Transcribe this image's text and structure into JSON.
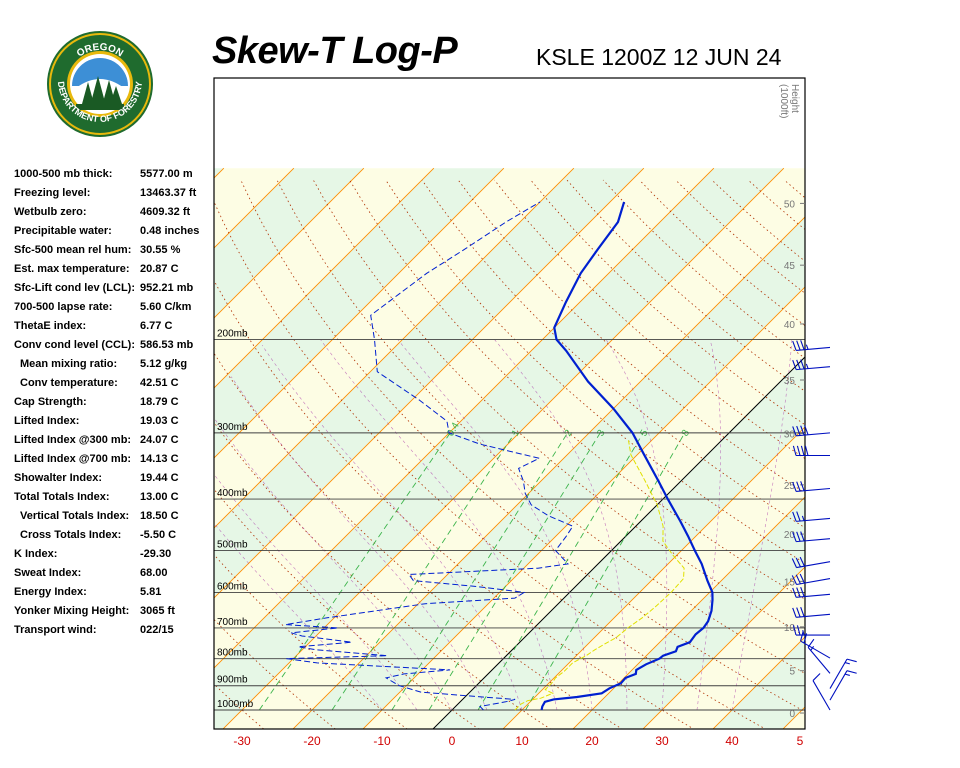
{
  "header": {
    "title": "Skew-T Log-P",
    "station": "KSLE 1200Z 12 JUN 24"
  },
  "logo": {
    "top_text": "OREGON",
    "ring_text": "DEPARTMENT OF FORESTRY",
    "colors": {
      "ring": "#1f6b2e",
      "gold": "#e8b90d",
      "sky": "#3d8fd6",
      "trees": "#1a5a24"
    }
  },
  "indices": [
    {
      "label": "1000-500 mb thick:",
      "value": "5577.00 m"
    },
    {
      "label": "Freezing level:",
      "value": "13463.37 ft"
    },
    {
      "label": "Wetbulb zero:",
      "value": "4609.32 ft"
    },
    {
      "label": "Precipitable water:",
      "value": "0.48 inches"
    },
    {
      "label": "Sfc-500 mean rel hum:",
      "value": "30.55 %"
    },
    {
      "label": "Est. max temperature:",
      "value": "20.87 C"
    },
    {
      "label": "Sfc-Lift cond lev (LCL):",
      "value": "952.21 mb"
    },
    {
      "label": "700-500 lapse rate:",
      "value": "5.60 C/km"
    },
    {
      "label": "ThetaE index:",
      "value": "6.77 C"
    },
    {
      "label": "Conv cond level (CCL):",
      "value": "586.53 mb"
    },
    {
      "label": "Mean mixing ratio:",
      "value": "5.12 g/kg",
      "sub": true
    },
    {
      "label": "Conv temperature:",
      "value": "42.51 C",
      "sub": true
    },
    {
      "label": "Cap Strength:",
      "value": "18.79 C"
    },
    {
      "label": "Lifted Index:",
      "value": "19.03 C"
    },
    {
      "label": "Lifted Index @300 mb:",
      "value": "24.07 C"
    },
    {
      "label": "Lifted Index @700 mb:",
      "value": "14.13 C"
    },
    {
      "label": "Showalter Index:",
      "value": "19.44 C"
    },
    {
      "label": "Total Totals Index:",
      "value": "13.00 C"
    },
    {
      "label": "Vertical Totals Index:",
      "value": "18.50 C",
      "sub": true
    },
    {
      "label": "Cross Totals Index:",
      "value": "-5.50 C",
      "sub": true
    },
    {
      "label": "K Index:",
      "value": "-29.30"
    },
    {
      "label": "Sweat Index:",
      "value": "68.00"
    },
    {
      "label": "Energy Index:",
      "value": "5.81"
    },
    {
      "label": "Yonker Mixing Height:",
      "value": "3065 ft"
    },
    {
      "label": "Transport wind:",
      "value": "022/15"
    }
  ],
  "chart_data": {
    "type": "line",
    "pressure_levels": [
      {
        "p": 200,
        "label": "200mb"
      },
      {
        "p": 300,
        "label": "300mb"
      },
      {
        "p": 400,
        "label": "400mb"
      },
      {
        "p": 500,
        "label": "500mb"
      },
      {
        "p": 600,
        "label": "600mb"
      },
      {
        "p": 700,
        "label": "700mb"
      },
      {
        "p": 800,
        "label": "800mb"
      },
      {
        "p": 900,
        "label": "900mb"
      },
      {
        "p": 1000,
        "label": "1000mb"
      }
    ],
    "x_ticks": [
      "-30",
      "-20",
      "-10",
      "0",
      "10",
      "20",
      "30",
      "40",
      "5"
    ],
    "height_axis_label": [
      "Height",
      "(1000ft)"
    ],
    "height_ticks": [
      "50",
      "45",
      "40",
      "35",
      "30",
      "25",
      "20",
      "15",
      "10",
      "5",
      "0"
    ],
    "mixing_ratio_labels": [
      "0.4",
      "1",
      "2",
      "3",
      "5",
      "8"
    ],
    "colors": {
      "temperature": "#0020d0",
      "dewpoint": "#0020d0",
      "wetbulb": "#e0e000",
      "isotherm": "#ff8c00",
      "dry_adiabat": "#b03000",
      "moist_adiabat": "#a020a0",
      "mixing_ratio": "#3cb44b",
      "isobar": "#404040",
      "band_green": "#e6f7e6",
      "band_yellow": "#fdfde4"
    },
    "series": [
      {
        "key": "temperature",
        "points": [
          [
            12.8,
            1000
          ],
          [
            12.4,
            985
          ],
          [
            12.1,
            965
          ],
          [
            13.0,
            955
          ],
          [
            16.0,
            945
          ],
          [
            19.0,
            930
          ],
          [
            19.4,
            910
          ],
          [
            20.3,
            890
          ],
          [
            20.2,
            870
          ],
          [
            21.1,
            855
          ],
          [
            20.6,
            840
          ],
          [
            21.2,
            820
          ],
          [
            22.3,
            800
          ],
          [
            22.4,
            790
          ],
          [
            23.6,
            775
          ],
          [
            23.2,
            760
          ],
          [
            24.3,
            745
          ],
          [
            24.0,
            720
          ],
          [
            24.2,
            700
          ],
          [
            23.9,
            680
          ],
          [
            22.9,
            650
          ],
          [
            21.5,
            620
          ],
          [
            20.4,
            600
          ],
          [
            18.0,
            570
          ],
          [
            14.8,
            530
          ],
          [
            11.9,
            500
          ],
          [
            8.9,
            470
          ],
          [
            5.6,
            440
          ],
          [
            0.7,
            400
          ],
          [
            -3.2,
            370
          ],
          [
            -9.0,
            330
          ],
          [
            -13.8,
            300
          ],
          [
            -20.0,
            270
          ],
          [
            -27.5,
            240
          ],
          [
            -35.0,
            210
          ],
          [
            -38.0,
            200
          ],
          [
            -40.0,
            190
          ],
          [
            -42.0,
            170
          ],
          [
            -44.0,
            150
          ],
          [
            -45.0,
            135
          ],
          [
            -46.0,
            120
          ],
          [
            -48.0,
            110
          ]
        ]
      },
      {
        "key": "dewpoint",
        "points": [
          [
            4.5,
            1000
          ],
          [
            3.5,
            985
          ],
          [
            6.5,
            965
          ],
          [
            7.5,
            955
          ],
          [
            2.5,
            945
          ],
          [
            -7.0,
            925
          ],
          [
            -11.0,
            900
          ],
          [
            -14.0,
            870
          ],
          [
            -12.0,
            855
          ],
          [
            -6.0,
            840
          ],
          [
            -26.0,
            815
          ],
          [
            -31.0,
            800
          ],
          [
            -17.0,
            790
          ],
          [
            -28.0,
            770
          ],
          [
            -31.0,
            760
          ],
          [
            -24.0,
            745
          ],
          [
            -32.0,
            725
          ],
          [
            -34.0,
            715
          ],
          [
            -28.0,
            700
          ],
          [
            -36.0,
            690
          ],
          [
            -31.0,
            670
          ],
          [
            -19.0,
            630
          ],
          [
            -7.0,
            615
          ],
          [
            -6.5,
            600
          ],
          [
            -14.0,
            585
          ],
          [
            -24.0,
            570
          ],
          [
            -25.5,
            555
          ],
          [
            -8.0,
            540
          ],
          [
            -4.3,
            530
          ],
          [
            -8.0,
            500
          ],
          [
            -8.5,
            470
          ],
          [
            -9.0,
            450
          ],
          [
            -14.0,
            430
          ],
          [
            -18.0,
            410
          ],
          [
            -20.5,
            390
          ],
          [
            -22.5,
            370
          ],
          [
            -25.0,
            350
          ],
          [
            -23.5,
            335
          ],
          [
            -34.0,
            315
          ],
          [
            -40.0,
            300
          ],
          [
            -42.0,
            285
          ],
          [
            -49.0,
            260
          ],
          [
            -59.0,
            230
          ],
          [
            -64.0,
            200
          ],
          [
            -68.0,
            180
          ],
          [
            -66.0,
            150
          ],
          [
            -64.0,
            135
          ],
          [
            -62.0,
            120
          ],
          [
            -60.0,
            110
          ]
        ]
      },
      {
        "key": "wetbulb",
        "points": [
          [
            9.0,
            1000
          ],
          [
            9.0,
            975
          ],
          [
            9.5,
            960
          ],
          [
            11.0,
            950
          ],
          [
            12.0,
            930
          ],
          [
            10.4,
            915
          ],
          [
            10.4,
            885
          ],
          [
            10.2,
            870
          ],
          [
            10.5,
            845
          ],
          [
            10.5,
            815
          ],
          [
            11.4,
            790
          ],
          [
            11.8,
            770
          ],
          [
            12.4,
            750
          ],
          [
            13.1,
            730
          ],
          [
            13.4,
            700
          ],
          [
            14.0,
            670
          ],
          [
            14.3,
            640
          ],
          [
            14.5,
            600
          ],
          [
            14.3,
            565
          ],
          [
            12.9,
            540
          ],
          [
            9.4,
            510
          ],
          [
            6.0,
            480
          ],
          [
            3.9,
            450
          ],
          [
            0.0,
            410
          ],
          [
            -5.1,
            370
          ],
          [
            -10.9,
            330
          ],
          [
            -13.3,
            310
          ]
        ]
      }
    ],
    "wind_barbs": [
      {
        "p": 225,
        "dir": 265,
        "spd": 35
      },
      {
        "p": 207,
        "dir": 265,
        "spd": 35
      },
      {
        "p": 300,
        "dir": 265,
        "spd": 40
      },
      {
        "p": 331,
        "dir": 270,
        "spd": 40
      },
      {
        "p": 382,
        "dir": 265,
        "spd": 30
      },
      {
        "p": 435,
        "dir": 265,
        "spd": 25
      },
      {
        "p": 475,
        "dir": 265,
        "spd": 30
      },
      {
        "p": 525,
        "dir": 260,
        "spd": 30
      },
      {
        "p": 565,
        "dir": 260,
        "spd": 30
      },
      {
        "p": 605,
        "dir": 265,
        "spd": 30
      },
      {
        "p": 660,
        "dir": 265,
        "spd": 30
      },
      {
        "p": 722,
        "dir": 270,
        "spd": 25
      },
      {
        "p": 798,
        "dir": 300,
        "spd": 20
      },
      {
        "p": 853,
        "dir": 320,
        "spd": 15
      },
      {
        "p": 911,
        "dir": 30,
        "spd": 15
      },
      {
        "p": 958,
        "dir": 30,
        "spd": 15
      },
      {
        "p": 1000,
        "dir": 330,
        "spd": 10
      }
    ]
  }
}
